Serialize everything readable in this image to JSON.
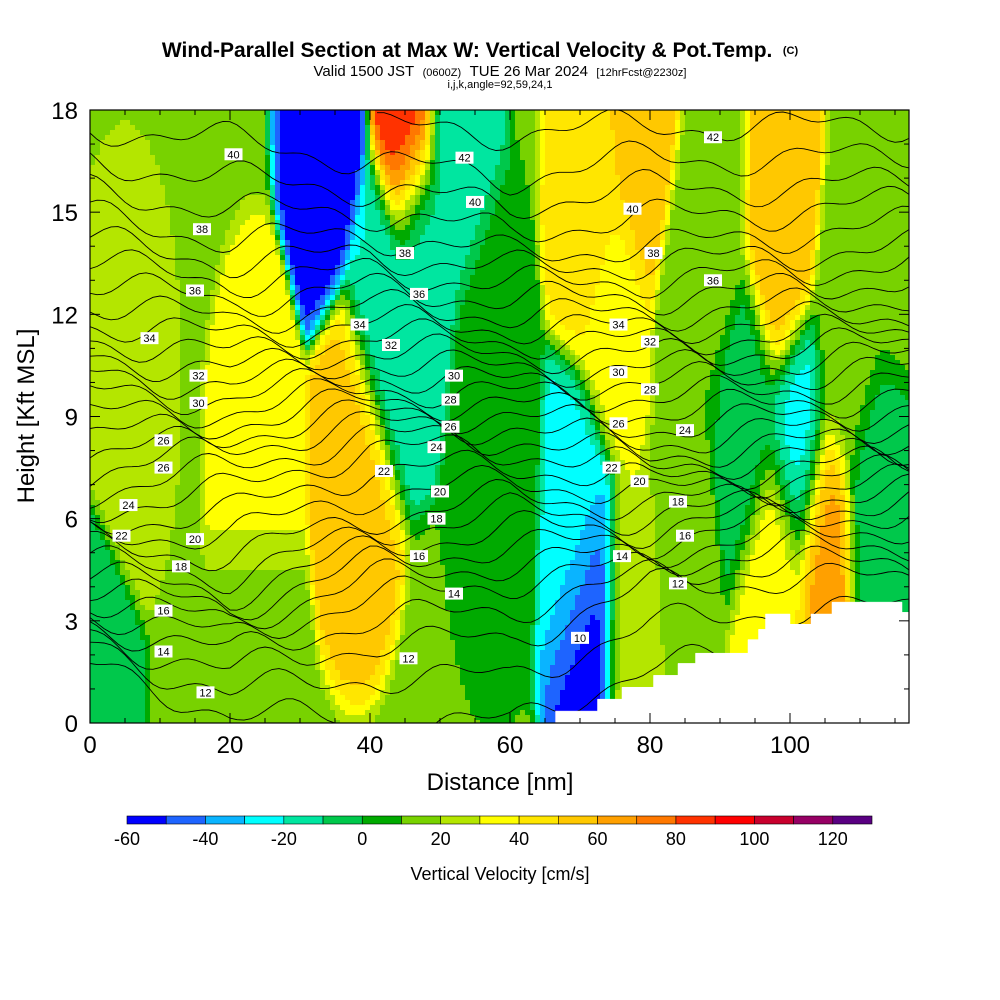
{
  "header": {
    "title": "Wind-Parallel Section at Max W: Vertical Velocity & Pot.Temp.",
    "copyright": "(C)",
    "valid_prefix": "Valid 1500 JST",
    "valid_utc": "(0600Z)",
    "valid_date": "TUE 26 Mar 2024",
    "forecast": "[12hrFcst@2230z]",
    "indices": "i,j,k,angle=92,59,24,1"
  },
  "chart_data": {
    "type": "heatmap",
    "xlabel": "Distance [nm]",
    "ylabel": "Height [Kft MSL]",
    "xlim": [
      0,
      117
    ],
    "ylim": [
      0,
      18
    ],
    "x_ticks": [
      0,
      20,
      40,
      60,
      80,
      100
    ],
    "y_ticks": [
      0,
      3,
      6,
      9,
      12,
      15,
      18
    ],
    "colorbar": {
      "label": "Vertical Velocity [cm/s]",
      "levels": [
        -60,
        -50,
        -40,
        -30,
        -20,
        -10,
        0,
        10,
        20,
        30,
        40,
        50,
        60,
        70,
        80,
        90,
        100,
        110,
        120,
        130
      ],
      "tick_values": [
        -60,
        -40,
        -20,
        0,
        20,
        40,
        60,
        80,
        100,
        120
      ],
      "colors": [
        "#0000ff",
        "#1e64ff",
        "#0ab4ff",
        "#00ffff",
        "#00e6a0",
        "#00c84b",
        "#00aa00",
        "#78d200",
        "#b4e600",
        "#ffff00",
        "#ffe600",
        "#ffc800",
        "#ffa000",
        "#ff7800",
        "#ff3200",
        "#ff0000",
        "#c8002d",
        "#960064",
        "#5a0082"
      ]
    },
    "vertical_velocity_features": [
      {
        "x": 0,
        "z": 0.8,
        "w": -8
      },
      {
        "x": 5,
        "z": 10,
        "w": 26
      },
      {
        "x": 24,
        "z": 7.5,
        "w": 38
      },
      {
        "x": 38,
        "z": 8,
        "w": 55
      },
      {
        "x": 34,
        "z": 17.5,
        "w": -55
      },
      {
        "x": 45.5,
        "z": 17.5,
        "w": 90
      },
      {
        "x": 41.5,
        "z": 12,
        "w": -20
      },
      {
        "x": 47,
        "z": 14,
        "w": -20
      },
      {
        "x": 52,
        "z": 17.3,
        "w": -14
      },
      {
        "x": 57,
        "z": 10,
        "w": 3
      },
      {
        "x": 58,
        "z": 7,
        "w": 8
      },
      {
        "x": 71.5,
        "z": 3.2,
        "w": -58
      },
      {
        "x": 70,
        "z": 5.5,
        "w": -22
      },
      {
        "x": 72,
        "z": 15,
        "w": 44
      },
      {
        "x": 78.5,
        "z": 17,
        "w": 58
      },
      {
        "x": 77,
        "z": 3,
        "w": 30
      },
      {
        "x": 75,
        "z": 12,
        "w": 35
      },
      {
        "x": 84,
        "z": 5,
        "w": 18
      },
      {
        "x": 86,
        "z": 12,
        "w": 10
      },
      {
        "x": 89,
        "z": 15,
        "w": 18
      },
      {
        "x": 94,
        "z": 9,
        "w": -5
      },
      {
        "x": 98.5,
        "z": 14,
        "w": 60
      },
      {
        "x": 98,
        "z": 4.5,
        "w": 40
      },
      {
        "x": 101,
        "z": 8,
        "w": -25
      },
      {
        "x": 105,
        "z": 5,
        "w": 65
      },
      {
        "x": 108,
        "z": 11,
        "w": 15
      },
      {
        "x": 112,
        "z": 6,
        "w": -5
      },
      {
        "x": 114,
        "z": 15,
        "w": 12
      },
      {
        "x": 24,
        "z": 3,
        "w": 15
      }
    ],
    "terrain_steps": [
      {
        "x": 66.5,
        "z": 0.35
      },
      {
        "x": 72.5,
        "z": 0.7
      },
      {
        "x": 76,
        "z": 1.05
      },
      {
        "x": 80.5,
        "z": 1.4
      },
      {
        "x": 84,
        "z": 1.75
      },
      {
        "x": 86.5,
        "z": 2.05
      },
      {
        "x": 94,
        "z": 2.45
      },
      {
        "x": 95.5,
        "z": 2.75
      },
      {
        "x": 96.5,
        "z": 3.2
      },
      {
        "x": 100,
        "z": 2.9
      },
      {
        "x": 103,
        "z": 3.2
      },
      {
        "x": 106,
        "z": 3.55
      },
      {
        "x": 116,
        "z": 3.25
      },
      {
        "x": 117,
        "z": 3.25
      }
    ],
    "potential_temperature": {
      "units": "C",
      "level_step": 1,
      "anchors": [
        {
          "x": 0,
          "levels": [
            {
              "z": 0,
              "t": 9
            },
            {
              "z": 2,
              "t": 11.5
            },
            {
              "z": 4,
              "t": 17
            },
            {
              "z": 6,
              "t": 22.5
            },
            {
              "z": 8,
              "t": 26.3
            },
            {
              "z": 10,
              "t": 29.5
            },
            {
              "z": 12,
              "t": 33.5
            },
            {
              "z": 14,
              "t": 36.8
            },
            {
              "z": 16,
              "t": 39.5
            },
            {
              "z": 18,
              "t": 41.5
            }
          ]
        },
        {
          "x": 20,
          "levels": [
            {
              "z": 0,
              "t": 10.5
            },
            {
              "z": 2,
              "t": 13.8
            },
            {
              "z": 4,
              "t": 18.5
            },
            {
              "z": 6,
              "t": 21.7
            },
            {
              "z": 8,
              "t": 24.8
            },
            {
              "z": 10,
              "t": 30.3
            },
            {
              "z": 12,
              "t": 34.3
            },
            {
              "z": 14,
              "t": 37.8
            },
            {
              "z": 16,
              "t": 40
            },
            {
              "z": 18,
              "t": 41.8
            }
          ]
        },
        {
          "x": 40,
          "levels": [
            {
              "z": 0,
              "t": 11
            },
            {
              "z": 2,
              "t": 12.5
            },
            {
              "z": 4,
              "t": 15.5
            },
            {
              "z": 6,
              "t": 20
            },
            {
              "z": 8,
              "t": 22.8
            },
            {
              "z": 10,
              "t": 28.5
            },
            {
              "z": 12,
              "t": 33.5
            },
            {
              "z": 14,
              "t": 37.5
            },
            {
              "z": 16,
              "t": 40.5
            },
            {
              "z": 18,
              "t": 42.5
            }
          ]
        },
        {
          "x": 60,
          "levels": [
            {
              "z": 0,
              "t": 11
            },
            {
              "z": 2,
              "t": 12.5
            },
            {
              "z": 4,
              "t": 14.7
            },
            {
              "z": 6,
              "t": 18.5
            },
            {
              "z": 8,
              "t": 23
            },
            {
              "z": 10,
              "t": 29
            },
            {
              "z": 12,
              "t": 34
            },
            {
              "z": 14,
              "t": 38.5
            },
            {
              "z": 16,
              "t": 41
            },
            {
              "z": 18,
              "t": 42.5
            }
          ]
        },
        {
          "x": 80,
          "levels": [
            {
              "z": 0,
              "t": 10
            },
            {
              "z": 2,
              "t": 11.2
            },
            {
              "z": 4,
              "t": 13
            },
            {
              "z": 6,
              "t": 19
            },
            {
              "z": 8,
              "t": 24.5
            },
            {
              "z": 10,
              "t": 29
            },
            {
              "z": 12,
              "t": 34
            },
            {
              "z": 14,
              "t": 38
            },
            {
              "z": 16,
              "t": 40.3
            },
            {
              "z": 18,
              "t": 42.5
            }
          ]
        },
        {
          "x": 100,
          "levels": [
            {
              "z": 0,
              "t": 10
            },
            {
              "z": 2,
              "t": 11
            },
            {
              "z": 4,
              "t": 12.5
            },
            {
              "z": 6,
              "t": 17
            },
            {
              "z": 8,
              "t": 23.5
            },
            {
              "z": 10,
              "t": 28.5
            },
            {
              "z": 12,
              "t": 33.5
            },
            {
              "z": 14,
              "t": 37.5
            },
            {
              "z": 16,
              "t": 40.5
            },
            {
              "z": 18,
              "t": 42.5
            }
          ]
        },
        {
          "x": 117,
          "levels": [
            {
              "z": 0,
              "t": 10
            },
            {
              "z": 2,
              "t": 11
            },
            {
              "z": 4,
              "t": 12.5
            },
            {
              "z": 6,
              "t": 16.5
            },
            {
              "z": 8,
              "t": 23
            },
            {
              "z": 10,
              "t": 28
            },
            {
              "z": 12,
              "t": 33
            },
            {
              "z": 14,
              "t": 37
            },
            {
              "z": 16,
              "t": 40
            },
            {
              "z": 18,
              "t": 42.5
            }
          ]
        }
      ],
      "labels": [
        {
          "text": "40",
          "x": 20.5,
          "z": 16.7
        },
        {
          "text": "42",
          "x": 53.5,
          "z": 16.6
        },
        {
          "text": "42",
          "x": 89,
          "z": 17.2
        },
        {
          "text": "38",
          "x": 16,
          "z": 14.5
        },
        {
          "text": "40",
          "x": 55,
          "z": 15.3
        },
        {
          "text": "40",
          "x": 77.5,
          "z": 15.1
        },
        {
          "text": "38",
          "x": 45,
          "z": 13.8
        },
        {
          "text": "38",
          "x": 80.5,
          "z": 13.8
        },
        {
          "text": "36",
          "x": 15,
          "z": 12.7
        },
        {
          "text": "36",
          "x": 47,
          "z": 12.6
        },
        {
          "text": "36",
          "x": 89,
          "z": 13
        },
        {
          "text": "34",
          "x": 8.5,
          "z": 11.3
        },
        {
          "text": "34",
          "x": 38.5,
          "z": 11.7
        },
        {
          "text": "34",
          "x": 75.5,
          "z": 11.7
        },
        {
          "text": "32",
          "x": 43,
          "z": 11.1
        },
        {
          "text": "32",
          "x": 80,
          "z": 11.2
        },
        {
          "text": "32",
          "x": 15.5,
          "z": 10.2
        },
        {
          "text": "30",
          "x": 52,
          "z": 10.2
        },
        {
          "text": "30",
          "x": 75.5,
          "z": 10.3
        },
        {
          "text": "28",
          "x": 80,
          "z": 9.8
        },
        {
          "text": "30",
          "x": 15.5,
          "z": 9.4
        },
        {
          "text": "28",
          "x": 51.5,
          "z": 9.5
        },
        {
          "text": "26",
          "x": 75.5,
          "z": 8.8
        },
        {
          "text": "26",
          "x": 51.5,
          "z": 8.7
        },
        {
          "text": "24",
          "x": 85,
          "z": 8.6
        },
        {
          "text": "26",
          "x": 10.5,
          "z": 8.3
        },
        {
          "text": "24",
          "x": 49.5,
          "z": 8.1
        },
        {
          "text": "26",
          "x": 10.5,
          "z": 7.5
        },
        {
          "text": "22",
          "x": 42,
          "z": 7.4
        },
        {
          "text": "22",
          "x": 74.5,
          "z": 7.5
        },
        {
          "text": "20",
          "x": 78.5,
          "z": 7.1
        },
        {
          "text": "24",
          "x": 5.5,
          "z": 6.4
        },
        {
          "text": "20",
          "x": 50,
          "z": 6.8
        },
        {
          "text": "18",
          "x": 84,
          "z": 6.5
        },
        {
          "text": "18",
          "x": 49.5,
          "z": 6
        },
        {
          "text": "22",
          "x": 4.5,
          "z": 5.5
        },
        {
          "text": "20",
          "x": 15,
          "z": 5.4
        },
        {
          "text": "16",
          "x": 85,
          "z": 5.5
        },
        {
          "text": "16",
          "x": 47,
          "z": 4.9
        },
        {
          "text": "14",
          "x": 76,
          "z": 4.9
        },
        {
          "text": "18",
          "x": 13,
          "z": 4.6
        },
        {
          "text": "12",
          "x": 84,
          "z": 4.1
        },
        {
          "text": "14",
          "x": 52,
          "z": 3.8
        },
        {
          "text": "16",
          "x": 10.5,
          "z": 3.3
        },
        {
          "text": "10",
          "x": 70,
          "z": 2.5
        },
        {
          "text": "14",
          "x": 10.5,
          "z": 2.1
        },
        {
          "text": "12",
          "x": 45.5,
          "z": 1.9
        },
        {
          "text": "12",
          "x": 16.5,
          "z": 0.9
        }
      ]
    }
  }
}
